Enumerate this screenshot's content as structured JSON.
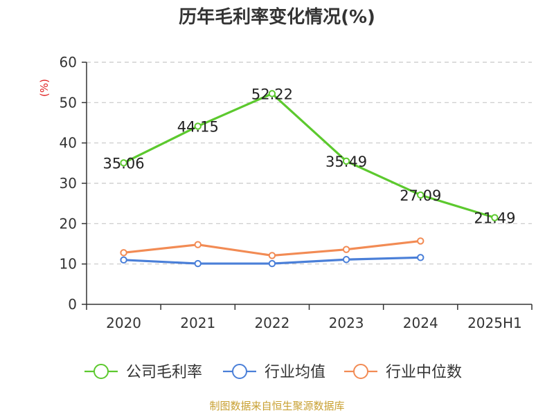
{
  "chart_data": {
    "type": "line",
    "title": "历年毛利率变化情况(%)",
    "ylabel": "(%)",
    "xlabel": "",
    "categories": [
      "2020",
      "2021",
      "2022",
      "2023",
      "2024",
      "2025H1"
    ],
    "ylim": [
      0,
      60
    ],
    "yticks": [
      0,
      10,
      20,
      30,
      40,
      50,
      60
    ],
    "grid": true,
    "legend_position": "bottom",
    "series": [
      {
        "name": "公司毛利率",
        "color": "#5cc92e",
        "values": [
          35.06,
          44.15,
          52.22,
          35.49,
          27.09,
          21.49
        ],
        "show_labels": true
      },
      {
        "name": "行业均值",
        "color": "#4a7fd8",
        "values": [
          11.0,
          10.1,
          10.1,
          11.1,
          11.6,
          null
        ],
        "show_labels": false
      },
      {
        "name": "行业中位数",
        "color": "#f28b54",
        "values": [
          12.8,
          14.8,
          12.1,
          13.6,
          15.7,
          null
        ],
        "show_labels": false
      }
    ]
  },
  "footer": {
    "source": "制图数据来自恒生聚源数据库"
  }
}
